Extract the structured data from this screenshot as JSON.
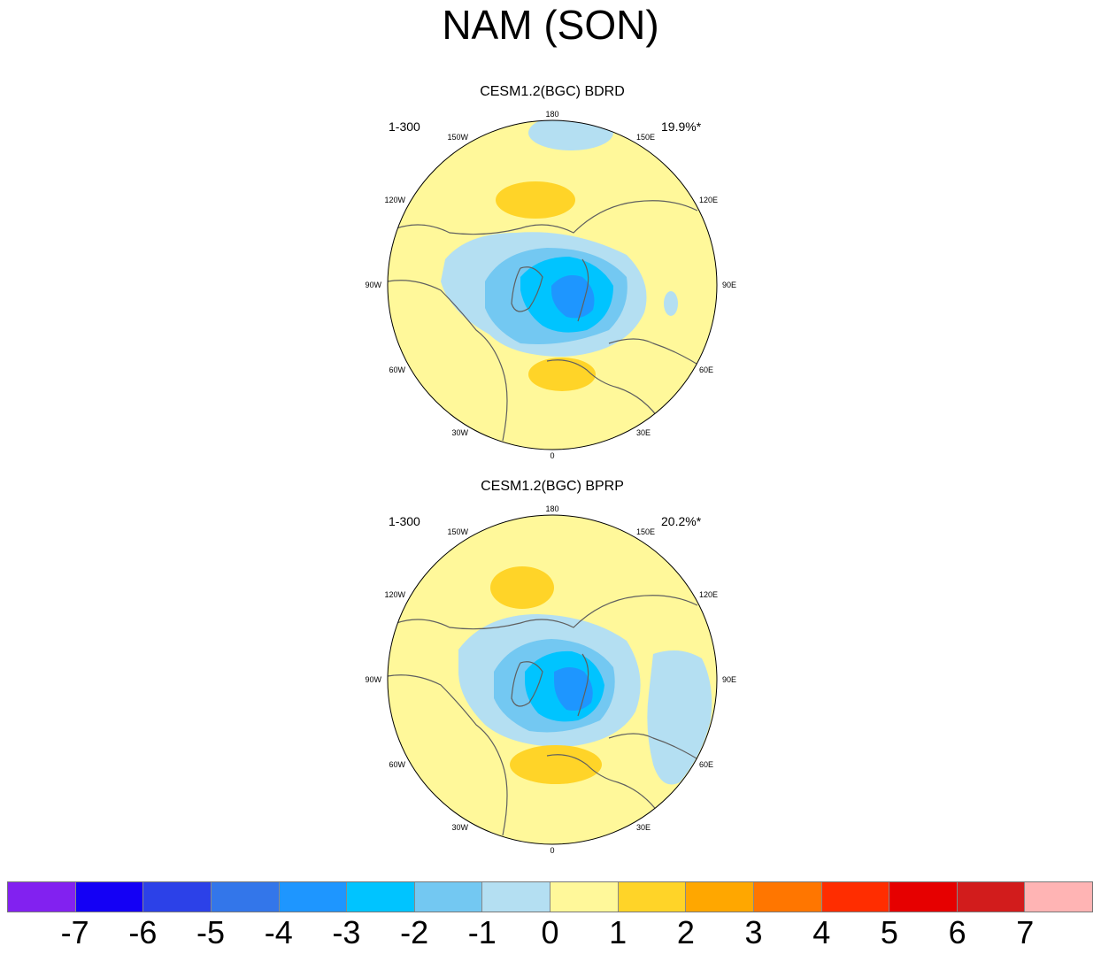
{
  "title": "NAM (SON)",
  "panels": [
    {
      "subtitle": "CESM1.2(BGC) BDRD",
      "left_label": "1-300",
      "right_label": "19.9%*",
      "lon_labels": [
        "180",
        "150E",
        "120E",
        "90E",
        "60E",
        "30E",
        "0",
        "30W",
        "60W",
        "90W",
        "120W",
        "150W"
      ]
    },
    {
      "subtitle": "CESM1.2(BGC) BPRP",
      "left_label": "1-300",
      "right_label": "20.2%*",
      "lon_labels": [
        "180",
        "150E",
        "120E",
        "90E",
        "60E",
        "30E",
        "0",
        "30W",
        "60W",
        "90W",
        "120W",
        "150W"
      ]
    }
  ],
  "colorbar": {
    "colors": [
      "#8221f0",
      "#1400f5",
      "#2c41e8",
      "#3376ea",
      "#1e96ff",
      "#00c4ff",
      "#73c8f2",
      "#b4dff2",
      "#fff89a",
      "#ffd428",
      "#ffa700",
      "#ff7600",
      "#ff2d00",
      "#e60000",
      "#d21c1c",
      "#ffb4b4"
    ],
    "labels": [
      "-7",
      "-6",
      "-5",
      "-4",
      "-3",
      "-2",
      "-1",
      "0",
      "1",
      "2",
      "3",
      "4",
      "5",
      "6",
      "7"
    ]
  },
  "colors": {
    "land_outline": "#5f5f5f",
    "background_field": "#fff89a"
  }
}
